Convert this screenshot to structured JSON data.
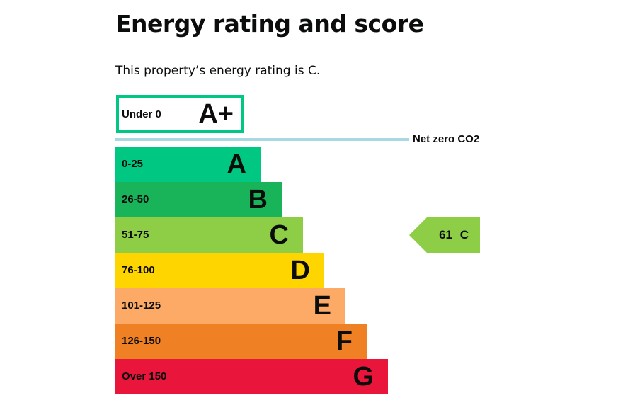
{
  "title": "Energy rating and score",
  "summary": "This property’s energy rating is C.",
  "chart_data": {
    "type": "bar",
    "title": "Energy rating and score",
    "top_band": {
      "range": "Under 0",
      "letter": "A+",
      "color": "#00c781"
    },
    "net_zero_label": "Net zero CO2",
    "net_zero_color": "#a8d8e3",
    "bands": [
      {
        "range": "0-25",
        "letter": "A",
        "color": "#00c781"
      },
      {
        "range": "26-50",
        "letter": "B",
        "color": "#19b459"
      },
      {
        "range": "51-75",
        "letter": "C",
        "color": "#8dce46"
      },
      {
        "range": "76-100",
        "letter": "D",
        "color": "#ffd500"
      },
      {
        "range": "101-125",
        "letter": "E",
        "color": "#fcaa65"
      },
      {
        "range": "126-150",
        "letter": "F",
        "color": "#ef8023"
      },
      {
        "range": "Over 150",
        "letter": "G",
        "color": "#e9153b"
      }
    ],
    "current": {
      "score": 61,
      "letter": "C",
      "label": "61 C",
      "band_index": 2
    }
  }
}
